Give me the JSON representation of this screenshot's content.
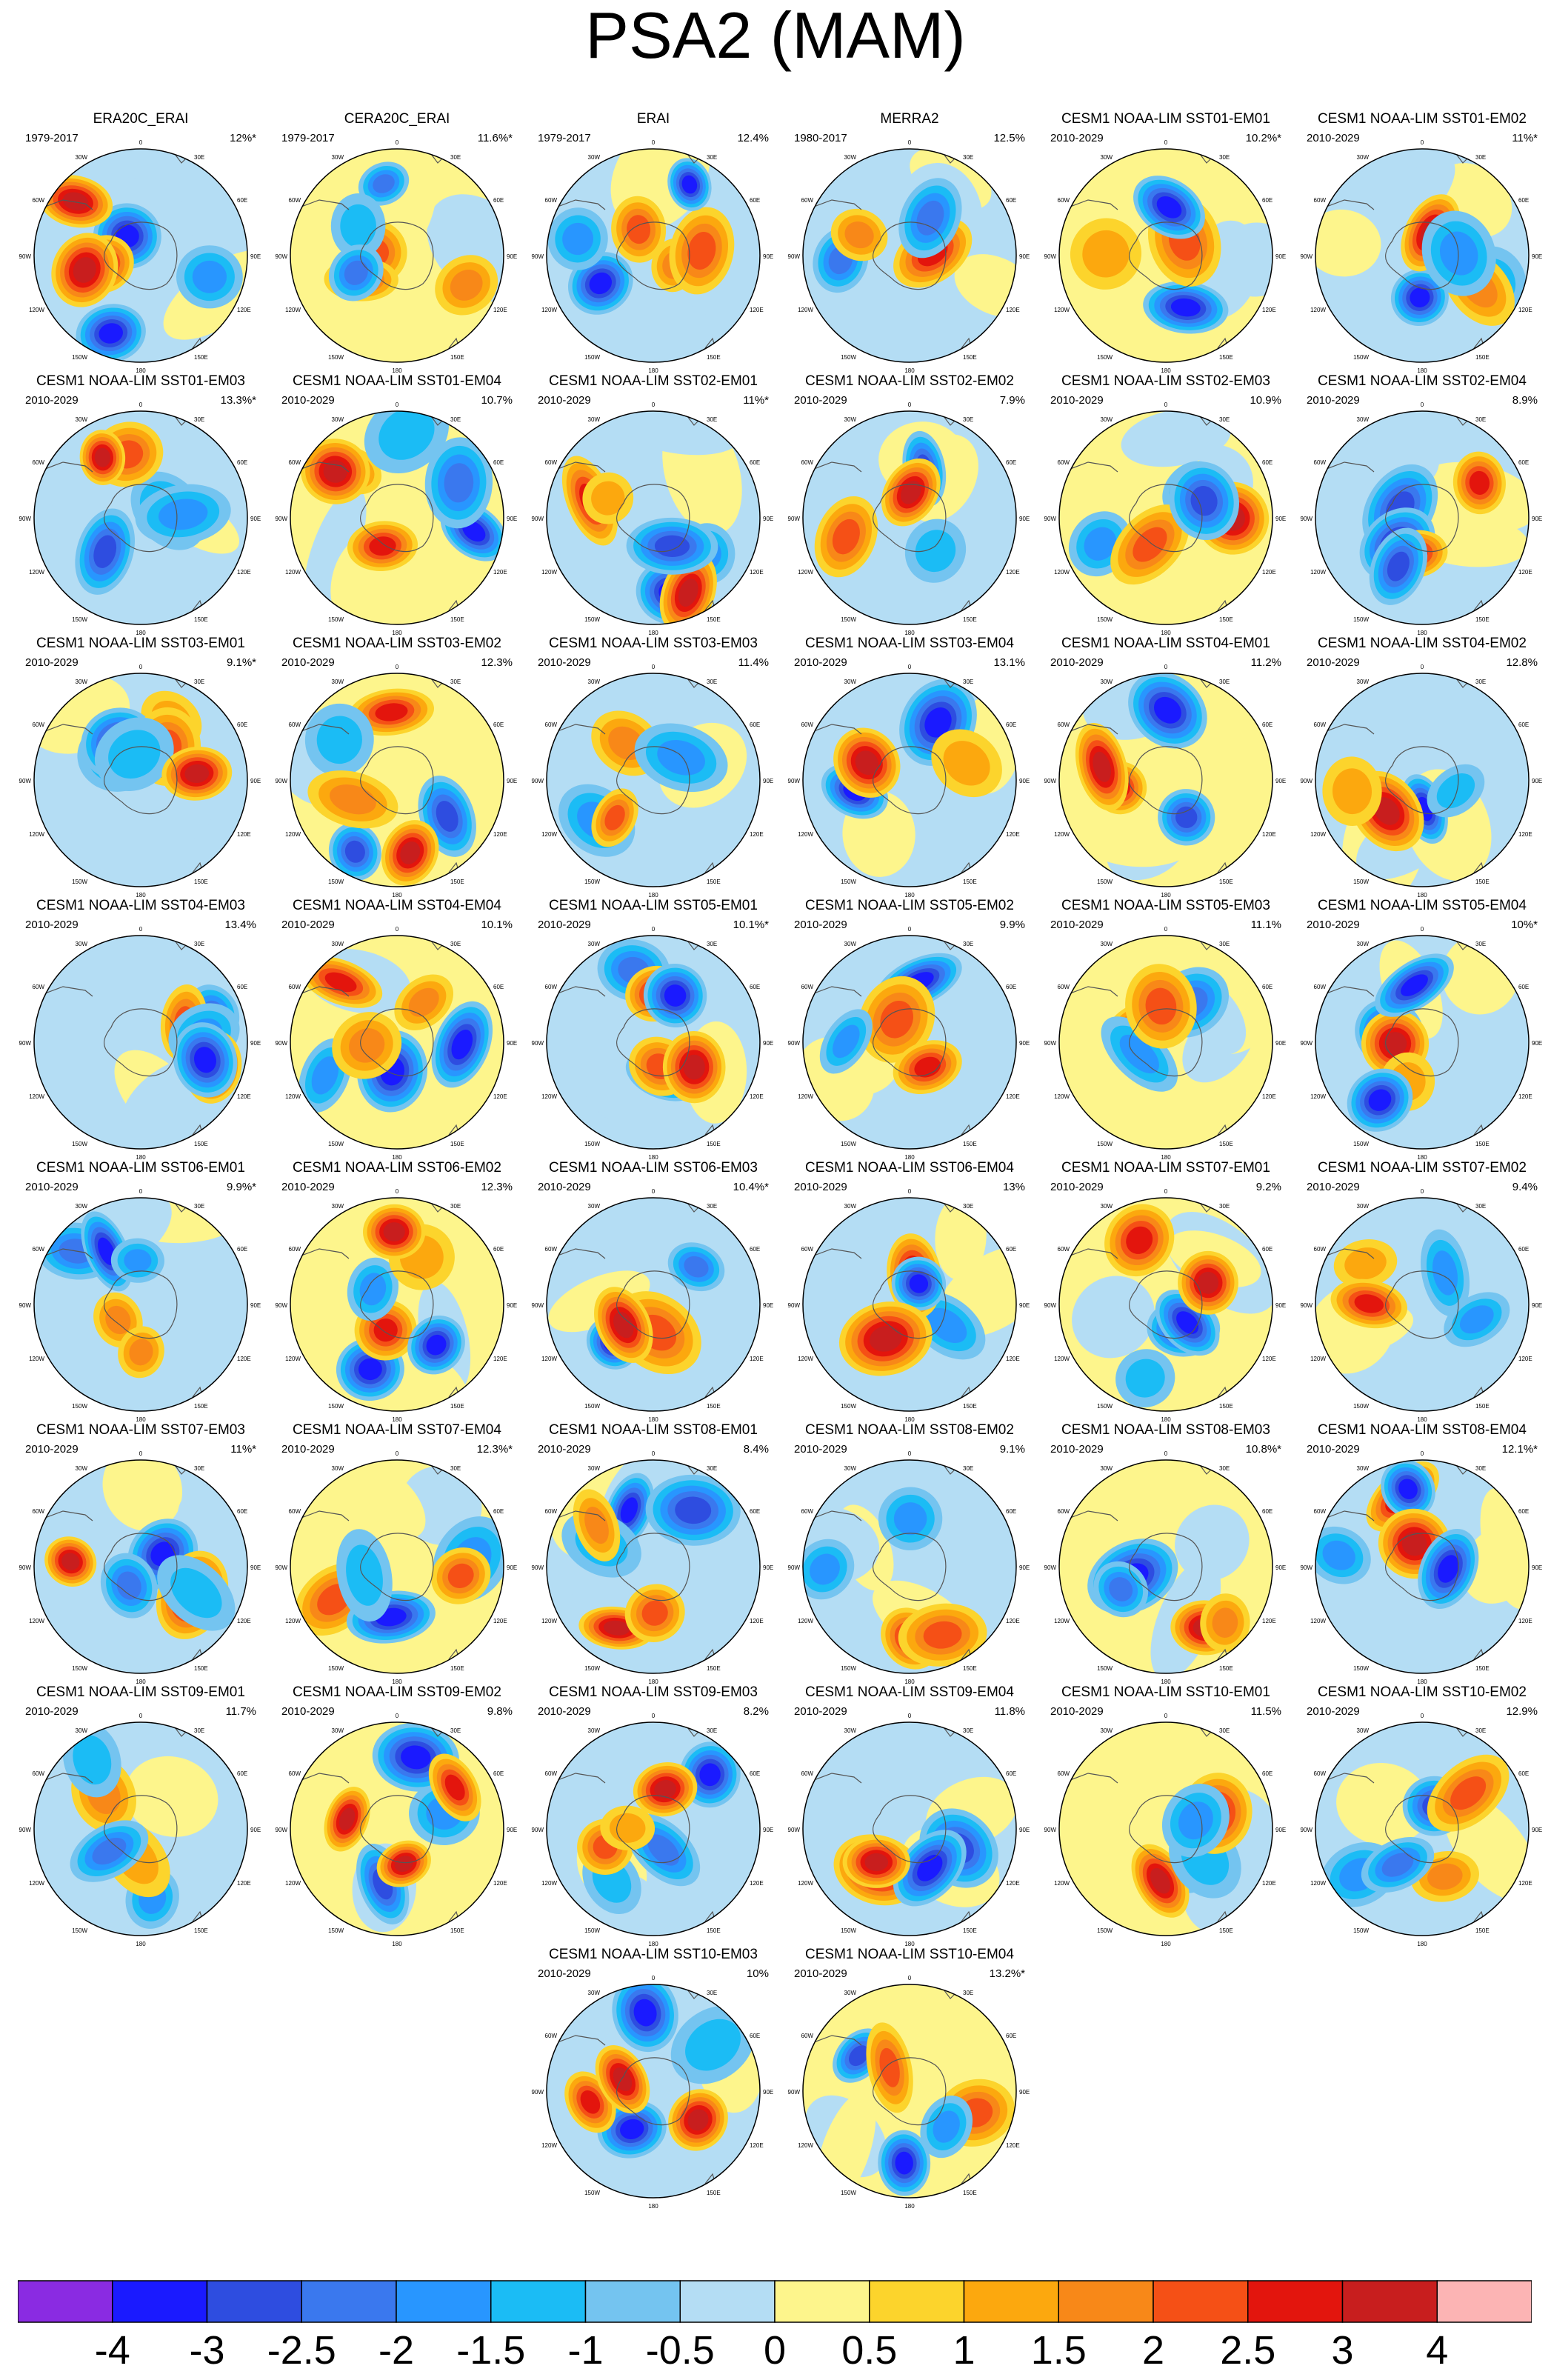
{
  "title": "PSA2 (MAM)",
  "colors": [
    "#8a2be2",
    "#1a1aff",
    "#2e4de0",
    "#3a78ee",
    "#2896ff",
    "#1bbcf5",
    "#74c4f0",
    "#b4ddf4",
    "#fdf58c",
    "#fcd42c",
    "#fca80e",
    "#f88818",
    "#f55016",
    "#e3150d",
    "#c81e1e",
    "#fcb4b4"
  ],
  "tick_labels": [
    "-4",
    "-3",
    "-2.5",
    "-2",
    "-1.5",
    "-1",
    "-0.5",
    "0",
    "0.5",
    "1",
    "1.5",
    "2",
    "2.5",
    "3",
    "4"
  ],
  "map_labels": {
    "top": "0",
    "tl": "30W",
    "tr": "30E",
    "ul": "60W",
    "ur": "60E",
    "l": "90W",
    "r": "90E",
    "ll": "120W",
    "lr": "120E",
    "bl": "150W",
    "br": "150E",
    "bottom": "180"
  },
  "chart_data": {
    "type": "heatmap",
    "description_kind": "polar stereographic anomaly maps",
    "colorbar": {
      "levels": [
        -4,
        -3,
        -2.5,
        -2,
        -1.5,
        -1,
        -0.5,
        0,
        0.5,
        1,
        1.5,
        2,
        2.5,
        3,
        4
      ],
      "placement": "bottom"
    },
    "panels": [
      {
        "title": "ERA20C_ERAI",
        "period": "1979-2017",
        "var": "12%*"
      },
      {
        "title": "CERA20C_ERAI",
        "period": "1979-2017",
        "var": "11.6%*"
      },
      {
        "title": "ERAI",
        "period": "1979-2017",
        "var": "12.4%"
      },
      {
        "title": "MERRA2",
        "period": "1980-2017",
        "var": "12.5%"
      },
      {
        "title": "CESM1 NOAA-LIM SST01-EM01",
        "period": "2010-2029",
        "var": "10.2%*"
      },
      {
        "title": "CESM1 NOAA-LIM SST01-EM02",
        "period": "2010-2029",
        "var": "11%*"
      },
      {
        "title": "CESM1 NOAA-LIM SST01-EM03",
        "period": "2010-2029",
        "var": "13.3%*"
      },
      {
        "title": "CESM1 NOAA-LIM SST01-EM04",
        "period": "2010-2029",
        "var": "10.7%"
      },
      {
        "title": "CESM1 NOAA-LIM SST02-EM01",
        "period": "2010-2029",
        "var": "11%*"
      },
      {
        "title": "CESM1 NOAA-LIM SST02-EM02",
        "period": "2010-2029",
        "var": "7.9%"
      },
      {
        "title": "CESM1 NOAA-LIM SST02-EM03",
        "period": "2010-2029",
        "var": "10.9%"
      },
      {
        "title": "CESM1 NOAA-LIM SST02-EM04",
        "period": "2010-2029",
        "var": "8.9%"
      },
      {
        "title": "CESM1 NOAA-LIM SST03-EM01",
        "period": "2010-2029",
        "var": "9.1%*"
      },
      {
        "title": "CESM1 NOAA-LIM SST03-EM02",
        "period": "2010-2029",
        "var": "12.3%"
      },
      {
        "title": "CESM1 NOAA-LIM SST03-EM03",
        "period": "2010-2029",
        "var": "11.4%"
      },
      {
        "title": "CESM1 NOAA-LIM SST03-EM04",
        "period": "2010-2029",
        "var": "13.1%"
      },
      {
        "title": "CESM1 NOAA-LIM SST04-EM01",
        "period": "2010-2029",
        "var": "11.2%"
      },
      {
        "title": "CESM1 NOAA-LIM SST04-EM02",
        "period": "2010-2029",
        "var": "12.8%"
      },
      {
        "title": "CESM1 NOAA-LIM SST04-EM03",
        "period": "2010-2029",
        "var": "13.4%"
      },
      {
        "title": "CESM1 NOAA-LIM SST04-EM04",
        "period": "2010-2029",
        "var": "10.1%"
      },
      {
        "title": "CESM1 NOAA-LIM SST05-EM01",
        "period": "2010-2029",
        "var": "10.1%*"
      },
      {
        "title": "CESM1 NOAA-LIM SST05-EM02",
        "period": "2010-2029",
        "var": "9.9%"
      },
      {
        "title": "CESM1 NOAA-LIM SST05-EM03",
        "period": "2010-2029",
        "var": "11.1%"
      },
      {
        "title": "CESM1 NOAA-LIM SST05-EM04",
        "period": "2010-2029",
        "var": "10%*"
      },
      {
        "title": "CESM1 NOAA-LIM SST06-EM01",
        "period": "2010-2029",
        "var": "9.9%*"
      },
      {
        "title": "CESM1 NOAA-LIM SST06-EM02",
        "period": "2010-2029",
        "var": "12.3%"
      },
      {
        "title": "CESM1 NOAA-LIM SST06-EM03",
        "period": "2010-2029",
        "var": "10.4%*"
      },
      {
        "title": "CESM1 NOAA-LIM SST06-EM04",
        "period": "2010-2029",
        "var": "13%"
      },
      {
        "title": "CESM1 NOAA-LIM SST07-EM01",
        "period": "2010-2029",
        "var": "9.2%"
      },
      {
        "title": "CESM1 NOAA-LIM SST07-EM02",
        "period": "2010-2029",
        "var": "9.4%"
      },
      {
        "title": "CESM1 NOAA-LIM SST07-EM03",
        "period": "2010-2029",
        "var": "11%*"
      },
      {
        "title": "CESM1 NOAA-LIM SST07-EM04",
        "period": "2010-2029",
        "var": "12.3%*"
      },
      {
        "title": "CESM1 NOAA-LIM SST08-EM01",
        "period": "2010-2029",
        "var": "8.4%"
      },
      {
        "title": "CESM1 NOAA-LIM SST08-EM02",
        "period": "2010-2029",
        "var": "9.1%"
      },
      {
        "title": "CESM1 NOAA-LIM SST08-EM03",
        "period": "2010-2029",
        "var": "10.8%*"
      },
      {
        "title": "CESM1 NOAA-LIM SST08-EM04",
        "period": "2010-2029",
        "var": "12.1%*"
      },
      {
        "title": "CESM1 NOAA-LIM SST09-EM01",
        "period": "2010-2029",
        "var": "11.7%"
      },
      {
        "title": "CESM1 NOAA-LIM SST09-EM02",
        "period": "2010-2029",
        "var": "9.8%"
      },
      {
        "title": "CESM1 NOAA-LIM SST09-EM03",
        "period": "2010-2029",
        "var": "8.2%"
      },
      {
        "title": "CESM1 NOAA-LIM SST09-EM04",
        "period": "2010-2029",
        "var": "11.8%"
      },
      {
        "title": "CESM1 NOAA-LIM SST10-EM01",
        "period": "2010-2029",
        "var": "11.5%"
      },
      {
        "title": "CESM1 NOAA-LIM SST10-EM02",
        "period": "2010-2029",
        "var": "12.9%"
      },
      {
        "title": "CESM1 NOAA-LIM SST10-EM03",
        "period": "2010-2029",
        "var": "10%"
      },
      {
        "title": "CESM1 NOAA-LIM SST10-EM04",
        "period": "2010-2029",
        "var": "13.2%*"
      }
    ]
  }
}
